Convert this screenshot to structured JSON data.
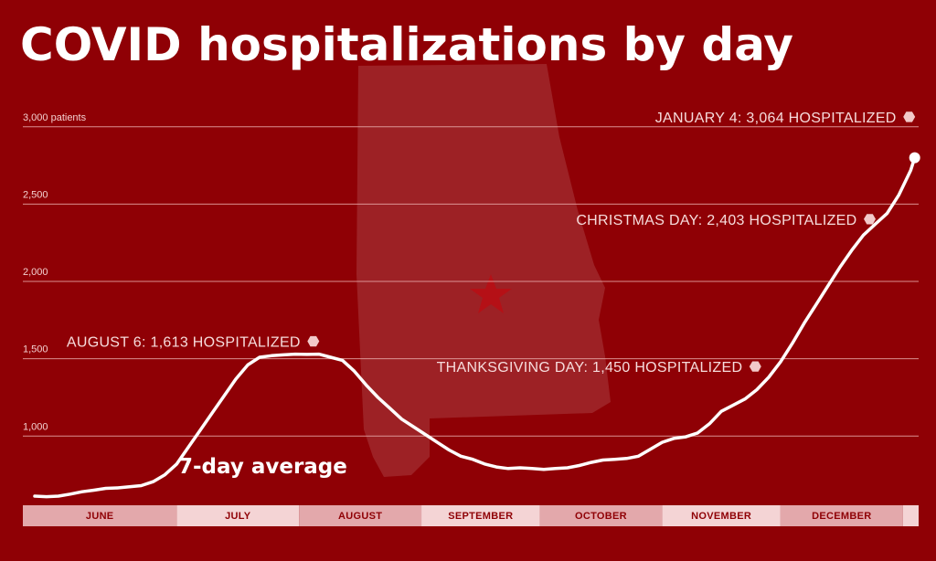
{
  "colors": {
    "background": "#8f0005",
    "line": "#ffffff",
    "grid": "#e8a9a9",
    "annotation_text": "#f6dcdc",
    "month_band_a": "#e3a8ab",
    "month_band_b": "#f4d4d5"
  },
  "chart_data": {
    "type": "line",
    "title": "COVID hospitalizations by day",
    "ylabel": "",
    "ylim": [
      600,
      3300
    ],
    "yticks": [
      {
        "value": 1000,
        "label": "1,000"
      },
      {
        "value": 1500,
        "label": "1,500"
      },
      {
        "value": 2000,
        "label": "2,000"
      },
      {
        "value": 2500,
        "label": "2,500"
      },
      {
        "value": 3000,
        "label": "3,000 patients"
      }
    ],
    "xlim": [
      "2020-05-23",
      "2021-01-05"
    ],
    "months": [
      {
        "label": "JUNE",
        "start": "2020-05-23",
        "end": "2020-07-01"
      },
      {
        "label": "JULY",
        "start": "2020-07-01",
        "end": "2020-08-01"
      },
      {
        "label": "AUGUST",
        "start": "2020-08-01",
        "end": "2020-09-01"
      },
      {
        "label": "SEPTEMBER",
        "start": "2020-09-01",
        "end": "2020-10-01"
      },
      {
        "label": "OCTOBER",
        "start": "2020-10-01",
        "end": "2020-11-01"
      },
      {
        "label": "NOVEMBER",
        "start": "2020-11-01",
        "end": "2020-12-01"
      },
      {
        "label": "DECEMBER",
        "start": "2020-12-01",
        "end": "2021-01-01"
      },
      {
        "label": "",
        "start": "2021-01-01",
        "end": "2021-01-05"
      }
    ],
    "series": [
      {
        "name": "7-day average",
        "points": [
          [
            "2020-05-26",
            612
          ],
          [
            "2020-05-29",
            608
          ],
          [
            "2020-06-01",
            612
          ],
          [
            "2020-06-04",
            625
          ],
          [
            "2020-06-07",
            640
          ],
          [
            "2020-06-10",
            650
          ],
          [
            "2020-06-13",
            662
          ],
          [
            "2020-06-16",
            665
          ],
          [
            "2020-06-19",
            672
          ],
          [
            "2020-06-22",
            680
          ],
          [
            "2020-06-25",
            705
          ],
          [
            "2020-06-28",
            750
          ],
          [
            "2020-07-01",
            820
          ],
          [
            "2020-07-04",
            930
          ],
          [
            "2020-07-07",
            1040
          ],
          [
            "2020-07-10",
            1150
          ],
          [
            "2020-07-13",
            1260
          ],
          [
            "2020-07-16",
            1370
          ],
          [
            "2020-07-19",
            1460
          ],
          [
            "2020-07-22",
            1510
          ],
          [
            "2020-07-25",
            1520
          ],
          [
            "2020-07-28",
            1525
          ],
          [
            "2020-07-31",
            1530
          ],
          [
            "2020-08-03",
            1528
          ],
          [
            "2020-08-06",
            1530
          ],
          [
            "2020-08-09",
            1510
          ],
          [
            "2020-08-12",
            1490
          ],
          [
            "2020-08-15",
            1420
          ],
          [
            "2020-08-18",
            1330
          ],
          [
            "2020-08-21",
            1250
          ],
          [
            "2020-08-24",
            1180
          ],
          [
            "2020-08-27",
            1110
          ],
          [
            "2020-08-30",
            1060
          ],
          [
            "2020-09-02",
            1010
          ],
          [
            "2020-09-05",
            960
          ],
          [
            "2020-09-08",
            910
          ],
          [
            "2020-09-11",
            870
          ],
          [
            "2020-09-14",
            850
          ],
          [
            "2020-09-17",
            820
          ],
          [
            "2020-09-20",
            800
          ],
          [
            "2020-09-23",
            790
          ],
          [
            "2020-09-26",
            795
          ],
          [
            "2020-09-29",
            790
          ],
          [
            "2020-10-02",
            785
          ],
          [
            "2020-10-05",
            790
          ],
          [
            "2020-10-08",
            795
          ],
          [
            "2020-10-11",
            810
          ],
          [
            "2020-10-14",
            830
          ],
          [
            "2020-10-17",
            845
          ],
          [
            "2020-10-20",
            850
          ],
          [
            "2020-10-23",
            855
          ],
          [
            "2020-10-26",
            870
          ],
          [
            "2020-10-29",
            915
          ],
          [
            "2020-11-01",
            960
          ],
          [
            "2020-11-04",
            985
          ],
          [
            "2020-11-07",
            995
          ],
          [
            "2020-11-10",
            1020
          ],
          [
            "2020-11-13",
            1080
          ],
          [
            "2020-11-16",
            1160
          ],
          [
            "2020-11-19",
            1200
          ],
          [
            "2020-11-22",
            1240
          ],
          [
            "2020-11-25",
            1300
          ],
          [
            "2020-11-28",
            1380
          ],
          [
            "2020-12-01",
            1480
          ],
          [
            "2020-12-04",
            1600
          ],
          [
            "2020-12-07",
            1730
          ],
          [
            "2020-12-10",
            1850
          ],
          [
            "2020-12-13",
            1970
          ],
          [
            "2020-12-16",
            2090
          ],
          [
            "2020-12-19",
            2200
          ],
          [
            "2020-12-22",
            2300
          ],
          [
            "2020-12-25",
            2370
          ],
          [
            "2020-12-28",
            2440
          ],
          [
            "2020-12-31",
            2560
          ],
          [
            "2021-01-03",
            2720
          ],
          [
            "2021-01-04",
            2800
          ]
        ]
      }
    ],
    "series_label": "7-day average",
    "annotations": [
      {
        "text": "JANUARY 4: 3,064 HOSPITALIZED",
        "date": "2021-01-04",
        "value": 3064
      },
      {
        "text": "CHRISTMAS DAY: 2,403 HOSPITALIZED",
        "date": "2020-12-25",
        "value": 2403
      },
      {
        "text": "AUGUST 6: 1,613 HOSPITALIZED",
        "date": "2020-08-06",
        "value": 1613
      },
      {
        "text": "THANKSGIVING DAY: 1,450 HOSPITALIZED",
        "date": "2020-11-26",
        "value": 1450
      }
    ],
    "grid": true
  }
}
